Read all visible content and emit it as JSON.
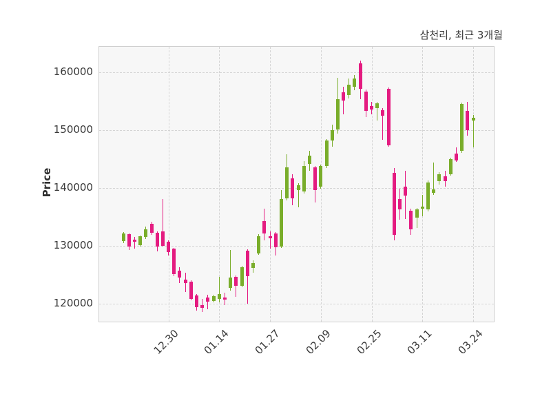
{
  "figure": {
    "title": "삼천리, 최근 3개월",
    "ylabel": "Price"
  },
  "chart_data": {
    "type": "candlestick",
    "title": "삼천리, 최근 3개월",
    "ylabel": "Price",
    "xlabel": "",
    "grid": "dashed-both-axes",
    "legend": "none",
    "ylim": [
      116700,
      164400
    ],
    "up_color": "#79AD2A",
    "down_color": "#E41B80",
    "background_color": "#f7f7f7",
    "y_ticks": [
      120000,
      130000,
      140000,
      150000,
      160000
    ],
    "x_ticks": [
      {
        "label": "12.30",
        "index": 8
      },
      {
        "label": "01.14",
        "index": 17
      },
      {
        "label": "01.27",
        "index": 26
      },
      {
        "label": "02.09",
        "index": 35
      },
      {
        "label": "02.25",
        "index": 44
      },
      {
        "label": "03.11",
        "index": 53
      },
      {
        "label": "03.24",
        "index": 62
      }
    ],
    "candles_format": [
      "open",
      "high",
      "low",
      "close"
    ],
    "candles": [
      [
        130800,
        132400,
        130500,
        132100
      ],
      [
        132000,
        132200,
        129300,
        129900
      ],
      [
        131100,
        131500,
        129500,
        130700
      ],
      [
        130100,
        131800,
        129900,
        131700
      ],
      [
        131500,
        133300,
        131200,
        132900
      ],
      [
        133800,
        134200,
        131900,
        132300
      ],
      [
        132300,
        132500,
        129100,
        129900
      ],
      [
        132500,
        138100,
        129900,
        130000
      ],
      [
        130700,
        130900,
        128300,
        128900
      ],
      [
        129500,
        129700,
        124800,
        125100
      ],
      [
        125700,
        126300,
        123600,
        124500
      ],
      [
        124200,
        125400,
        122000,
        123600
      ],
      [
        123800,
        124000,
        120600,
        120800
      ],
      [
        121400,
        121700,
        118800,
        119400
      ],
      [
        119800,
        120800,
        118600,
        119300
      ],
      [
        121100,
        121600,
        119000,
        120400
      ],
      [
        120500,
        121500,
        120200,
        121300
      ],
      [
        120800,
        124600,
        120200,
        121700
      ],
      [
        121100,
        121900,
        119800,
        120700
      ],
      [
        122700,
        129300,
        122300,
        124500
      ],
      [
        124600,
        124900,
        121200,
        123100
      ],
      [
        123100,
        126600,
        122900,
        126300
      ],
      [
        129200,
        129400,
        120000,
        124800
      ],
      [
        126200,
        127500,
        125400,
        127000
      ],
      [
        128700,
        132000,
        128400,
        131700
      ],
      [
        134300,
        136400,
        131000,
        132100
      ],
      [
        131700,
        132500,
        129500,
        131300
      ],
      [
        132200,
        132400,
        128300,
        129800
      ],
      [
        129900,
        139600,
        129600,
        138100
      ],
      [
        138200,
        145800,
        137900,
        143600
      ],
      [
        141700,
        142400,
        137000,
        138200
      ],
      [
        139600,
        140800,
        136700,
        140500
      ],
      [
        139400,
        144600,
        139100,
        143800
      ],
      [
        144200,
        146400,
        143000,
        145600
      ],
      [
        143600,
        143800,
        137500,
        139700
      ],
      [
        140200,
        144000,
        139900,
        143800
      ],
      [
        143800,
        148500,
        143500,
        148200
      ],
      [
        148200,
        151000,
        147100,
        150000
      ],
      [
        150100,
        159000,
        149400,
        155400
      ],
      [
        156500,
        157500,
        152700,
        155100
      ],
      [
        156100,
        158900,
        155500,
        157900
      ],
      [
        157500,
        159500,
        156900,
        158900
      ],
      [
        161500,
        162000,
        155300,
        157100
      ],
      [
        156700,
        157000,
        152300,
        153300
      ],
      [
        154200,
        154900,
        152700,
        153600
      ],
      [
        153800,
        154900,
        151700,
        154700
      ],
      [
        153500,
        153800,
        148300,
        152500
      ],
      [
        157100,
        157400,
        147100,
        147400
      ],
      [
        142600,
        143500,
        131000,
        131900
      ],
      [
        138100,
        139900,
        134500,
        136300
      ],
      [
        140200,
        143000,
        134600,
        138700
      ],
      [
        136100,
        136400,
        131900,
        132900
      ],
      [
        134900,
        136500,
        133100,
        136300
      ],
      [
        136400,
        138800,
        135100,
        136800
      ],
      [
        136300,
        141300,
        136000,
        141000
      ],
      [
        139200,
        144400,
        138800,
        139800
      ],
      [
        141200,
        142800,
        140600,
        142400
      ],
      [
        142000,
        143000,
        140200,
        141200
      ],
      [
        142400,
        145300,
        142100,
        145000
      ],
      [
        146000,
        147000,
        144500,
        144800
      ],
      [
        146400,
        154800,
        146100,
        154500
      ],
      [
        153300,
        154900,
        149000,
        150000
      ],
      [
        151700,
        152600,
        147000,
        152100
      ]
    ]
  }
}
